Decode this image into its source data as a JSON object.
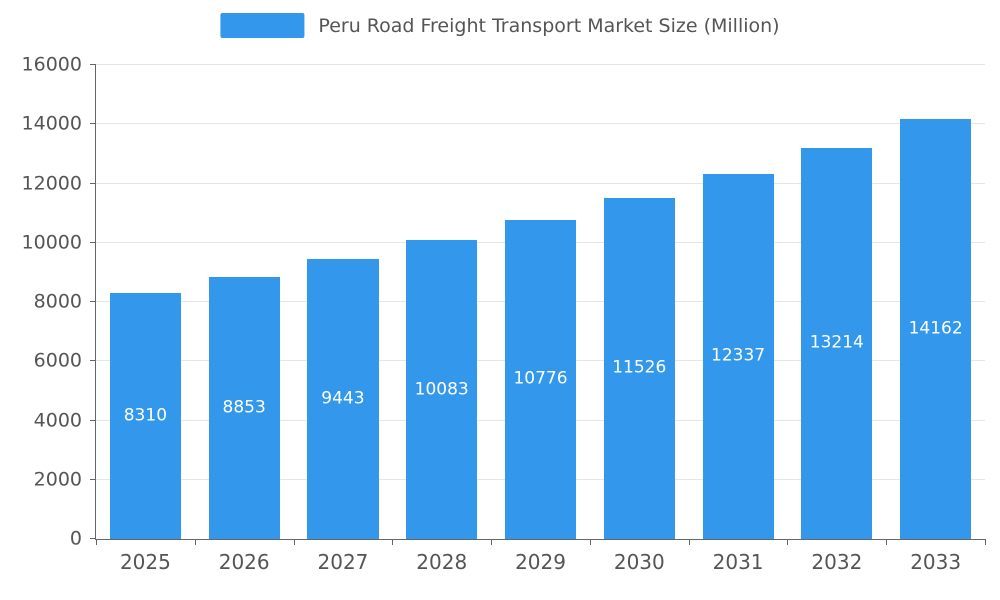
{
  "chart_data": {
    "type": "bar",
    "title": "Peru Road Freight Transport Market Size (Million)",
    "categories": [
      "2025",
      "2026",
      "2027",
      "2028",
      "2029",
      "2030",
      "2031",
      "2032",
      "2033"
    ],
    "values": [
      8310,
      8853,
      9443,
      10083,
      10776,
      11526,
      12337,
      13214,
      14162
    ],
    "series": [
      {
        "name": "Peru Road Freight Transport Market Size (Million)",
        "values": [
          8310,
          8853,
          9443,
          10083,
          10776,
          11526,
          12337,
          13214,
          14162
        ]
      }
    ],
    "xlabel": "",
    "ylabel": "",
    "ylim": [
      0,
      16000
    ],
    "yticks": [
      0,
      2000,
      4000,
      6000,
      8000,
      10000,
      12000,
      14000,
      16000
    ],
    "grid": true,
    "legend_position": "top-center",
    "value_labels": "inside-middle",
    "colors": {
      "bar": "#3398EC",
      "grid": "#E6E6E6",
      "axis": "#666666",
      "axis_text": "#555555",
      "value_label": "#FFFFFF",
      "background": "#FFFFFF"
    }
  }
}
